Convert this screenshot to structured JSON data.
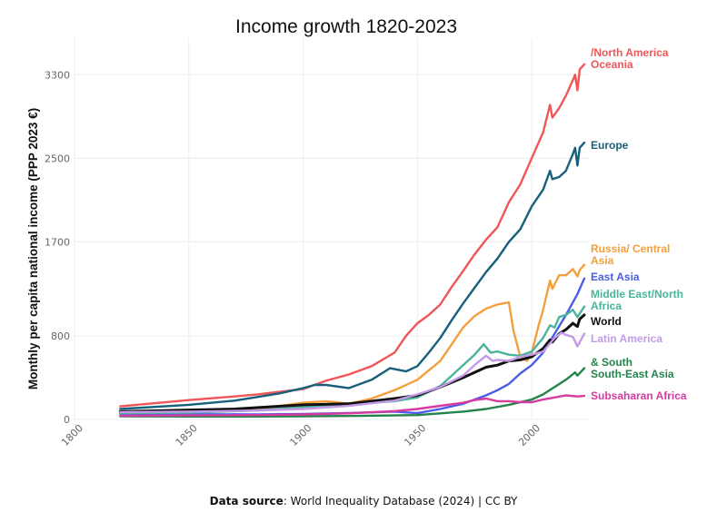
{
  "chart_data": {
    "type": "line",
    "title": "Income growth 1820-2023",
    "ylabel": "Monthly per capita national income (PPP 2023 €)",
    "xlabel": "",
    "xlim": [
      1800,
      2025
    ],
    "ylim": [
      0,
      3650
    ],
    "x_ticks": [
      "1800",
      "1850",
      "1900",
      "1950",
      "2000"
    ],
    "y_ticks": [
      "0",
      "800",
      "1700",
      "2500",
      "3300"
    ],
    "grid": true,
    "legend": "inline labels at line ends",
    "series": [
      {
        "name": "/North America Oceania",
        "label_lines": [
          "/North America",
          "Oceania"
        ],
        "color": "#f05558",
        "points": [
          [
            1820,
            125
          ],
          [
            1850,
            185
          ],
          [
            1870,
            220
          ],
          [
            1880,
            240
          ],
          [
            1890,
            265
          ],
          [
            1900,
            290
          ],
          [
            1910,
            370
          ],
          [
            1920,
            430
          ],
          [
            1930,
            510
          ],
          [
            1940,
            640
          ],
          [
            1945,
            800
          ],
          [
            1950,
            920
          ],
          [
            1955,
            1000
          ],
          [
            1960,
            1100
          ],
          [
            1965,
            1270
          ],
          [
            1970,
            1420
          ],
          [
            1975,
            1580
          ],
          [
            1980,
            1720
          ],
          [
            1985,
            1840
          ],
          [
            1990,
            2080
          ],
          [
            1995,
            2250
          ],
          [
            2000,
            2500
          ],
          [
            2005,
            2750
          ],
          [
            2008,
            3010
          ],
          [
            2009,
            2890
          ],
          [
            2012,
            2980
          ],
          [
            2015,
            3100
          ],
          [
            2018,
            3250
          ],
          [
            2019,
            3300
          ],
          [
            2020,
            3150
          ],
          [
            2021,
            3350
          ],
          [
            2023,
            3400
          ]
        ]
      },
      {
        "name": "Europe",
        "label_lines": [
          "Europe"
        ],
        "color": "#16607a",
        "points": [
          [
            1820,
            100
          ],
          [
            1850,
            140
          ],
          [
            1870,
            180
          ],
          [
            1880,
            215
          ],
          [
            1890,
            250
          ],
          [
            1900,
            300
          ],
          [
            1905,
            330
          ],
          [
            1910,
            330
          ],
          [
            1920,
            300
          ],
          [
            1930,
            380
          ],
          [
            1938,
            490
          ],
          [
            1945,
            460
          ],
          [
            1950,
            510
          ],
          [
            1955,
            640
          ],
          [
            1960,
            780
          ],
          [
            1965,
            950
          ],
          [
            1970,
            1110
          ],
          [
            1975,
            1260
          ],
          [
            1980,
            1410
          ],
          [
            1985,
            1540
          ],
          [
            1990,
            1700
          ],
          [
            1995,
            1820
          ],
          [
            2000,
            2040
          ],
          [
            2005,
            2200
          ],
          [
            2008,
            2380
          ],
          [
            2009,
            2300
          ],
          [
            2012,
            2320
          ],
          [
            2015,
            2380
          ],
          [
            2018,
            2540
          ],
          [
            2019,
            2600
          ],
          [
            2020,
            2430
          ],
          [
            2021,
            2600
          ],
          [
            2023,
            2650
          ]
        ]
      },
      {
        "name": "Russia/ Central Asia",
        "label_lines": [
          "Russia/ Central",
          "Asia"
        ],
        "color": "#f3a03c",
        "points": [
          [
            1820,
            60
          ],
          [
            1850,
            75
          ],
          [
            1870,
            95
          ],
          [
            1885,
            115
          ],
          [
            1900,
            160
          ],
          [
            1910,
            175
          ],
          [
            1920,
            150
          ],
          [
            1930,
            200
          ],
          [
            1940,
            280
          ],
          [
            1950,
            380
          ],
          [
            1960,
            560
          ],
          [
            1965,
            720
          ],
          [
            1970,
            880
          ],
          [
            1975,
            990
          ],
          [
            1980,
            1060
          ],
          [
            1985,
            1100
          ],
          [
            1990,
            1120
          ],
          [
            1992,
            850
          ],
          [
            1995,
            600
          ],
          [
            1998,
            560
          ],
          [
            2000,
            640
          ],
          [
            2003,
            900
          ],
          [
            2005,
            1050
          ],
          [
            2008,
            1330
          ],
          [
            2009,
            1250
          ],
          [
            2012,
            1380
          ],
          [
            2015,
            1380
          ],
          [
            2018,
            1440
          ],
          [
            2020,
            1370
          ],
          [
            2021,
            1430
          ],
          [
            2023,
            1480
          ]
        ]
      },
      {
        "name": "East Asia",
        "label_lines": [
          "East Asia"
        ],
        "color": "#4a5de8",
        "points": [
          [
            1820,
            55
          ],
          [
            1850,
            50
          ],
          [
            1880,
            48
          ],
          [
            1900,
            52
          ],
          [
            1920,
            62
          ],
          [
            1940,
            75
          ],
          [
            1950,
            60
          ],
          [
            1960,
            100
          ],
          [
            1970,
            150
          ],
          [
            1975,
            190
          ],
          [
            1980,
            230
          ],
          [
            1985,
            280
          ],
          [
            1990,
            340
          ],
          [
            1995,
            440
          ],
          [
            2000,
            520
          ],
          [
            2005,
            640
          ],
          [
            2010,
            820
          ],
          [
            2015,
            1000
          ],
          [
            2020,
            1200
          ],
          [
            2023,
            1350
          ]
        ]
      },
      {
        "name": "Middle East/North Africa",
        "label_lines": [
          "Middle East/North",
          "Africa"
        ],
        "color": "#4ab39c",
        "points": [
          [
            1820,
            60
          ],
          [
            1850,
            65
          ],
          [
            1880,
            85
          ],
          [
            1900,
            120
          ],
          [
            1920,
            145
          ],
          [
            1940,
            175
          ],
          [
            1950,
            210
          ],
          [
            1960,
            320
          ],
          [
            1965,
            420
          ],
          [
            1970,
            520
          ],
          [
            1975,
            620
          ],
          [
            1979,
            720
          ],
          [
            1982,
            640
          ],
          [
            1985,
            650
          ],
          [
            1990,
            620
          ],
          [
            1995,
            610
          ],
          [
            2000,
            650
          ],
          [
            2005,
            780
          ],
          [
            2008,
            900
          ],
          [
            2010,
            880
          ],
          [
            2012,
            980
          ],
          [
            2015,
            1000
          ],
          [
            2018,
            1050
          ],
          [
            2020,
            980
          ],
          [
            2023,
            1080
          ]
        ]
      },
      {
        "name": "World",
        "label_lines": [
          "World"
        ],
        "color": "#111111",
        "points": [
          [
            1820,
            75
          ],
          [
            1850,
            90
          ],
          [
            1870,
            100
          ],
          [
            1900,
            140
          ],
          [
            1920,
            150
          ],
          [
            1940,
            200
          ],
          [
            1950,
            230
          ],
          [
            1960,
            310
          ],
          [
            1970,
            400
          ],
          [
            1975,
            450
          ],
          [
            1980,
            500
          ],
          [
            1985,
            520
          ],
          [
            1990,
            560
          ],
          [
            1995,
            570
          ],
          [
            2000,
            600
          ],
          [
            2005,
            680
          ],
          [
            2008,
            760
          ],
          [
            2009,
            740
          ],
          [
            2012,
            820
          ],
          [
            2015,
            860
          ],
          [
            2018,
            920
          ],
          [
            2020,
            890
          ],
          [
            2021,
            960
          ],
          [
            2023,
            1000
          ]
        ]
      },
      {
        "name": "Latin America",
        "label_lines": [
          "Latin America"
        ],
        "color": "#c49ae8",
        "points": [
          [
            1820,
            70
          ],
          [
            1850,
            75
          ],
          [
            1880,
            85
          ],
          [
            1900,
            100
          ],
          [
            1920,
            130
          ],
          [
            1940,
            180
          ],
          [
            1950,
            240
          ],
          [
            1960,
            310
          ],
          [
            1970,
            420
          ],
          [
            1975,
            520
          ],
          [
            1980,
            610
          ],
          [
            1983,
            560
          ],
          [
            1985,
            570
          ],
          [
            1990,
            560
          ],
          [
            1995,
            600
          ],
          [
            2000,
            620
          ],
          [
            2005,
            650
          ],
          [
            2010,
            780
          ],
          [
            2013,
            830
          ],
          [
            2015,
            810
          ],
          [
            2018,
            790
          ],
          [
            2020,
            700
          ],
          [
            2023,
            820
          ]
        ]
      },
      {
        "name": "& South South-East Asia",
        "label_lines": [
          "& South",
          "South-East Asia"
        ],
        "color": "#24834a",
        "points": [
          [
            1820,
            30
          ],
          [
            1850,
            28
          ],
          [
            1880,
            28
          ],
          [
            1900,
            30
          ],
          [
            1920,
            33
          ],
          [
            1940,
            38
          ],
          [
            1950,
            42
          ],
          [
            1960,
            58
          ],
          [
            1970,
            75
          ],
          [
            1980,
            100
          ],
          [
            1990,
            140
          ],
          [
            2000,
            190
          ],
          [
            2005,
            240
          ],
          [
            2010,
            310
          ],
          [
            2015,
            380
          ],
          [
            2019,
            450
          ],
          [
            2020,
            420
          ],
          [
            2023,
            490
          ]
        ]
      },
      {
        "name": "Subsaharan Africa",
        "label_lines": [
          "Subsaharan Africa"
        ],
        "color": "#d63ba0",
        "points": [
          [
            1820,
            35
          ],
          [
            1850,
            38
          ],
          [
            1880,
            42
          ],
          [
            1900,
            48
          ],
          [
            1920,
            58
          ],
          [
            1940,
            80
          ],
          [
            1950,
            100
          ],
          [
            1960,
            130
          ],
          [
            1970,
            160
          ],
          [
            1975,
            185
          ],
          [
            1980,
            200
          ],
          [
            1985,
            175
          ],
          [
            1990,
            175
          ],
          [
            1995,
            165
          ],
          [
            2000,
            165
          ],
          [
            2005,
            190
          ],
          [
            2010,
            210
          ],
          [
            2015,
            230
          ],
          [
            2020,
            220
          ],
          [
            2023,
            225
          ]
        ]
      }
    ]
  },
  "source": {
    "label": "Data source",
    "text": ": World Inequality Database (2024) | CC BY"
  }
}
